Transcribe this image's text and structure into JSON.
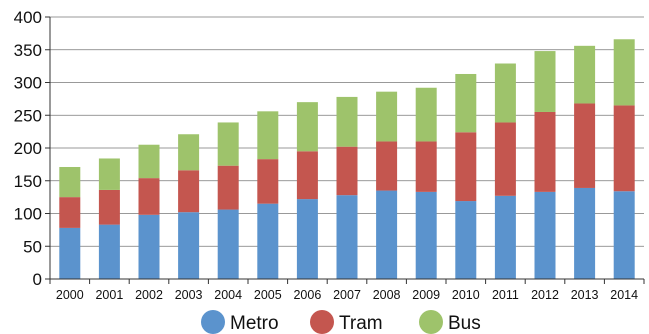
{
  "chart_data": {
    "type": "bar",
    "stacked": true,
    "categories": [
      "2000",
      "2001",
      "2002",
      "2003",
      "2004",
      "2005",
      "2006",
      "2007",
      "2008",
      "2009",
      "2010",
      "2011",
      "2012",
      "2013",
      "2014"
    ],
    "series": [
      {
        "name": "Metro",
        "color": "#5b93cd",
        "values": [
          78,
          83,
          98,
          102,
          106,
          115,
          122,
          128,
          135,
          133,
          119,
          127,
          133,
          139,
          134
        ]
      },
      {
        "name": "Tram",
        "color": "#c4564f",
        "values": [
          47,
          53,
          56,
          64,
          67,
          68,
          73,
          74,
          75,
          77,
          105,
          112,
          122,
          129,
          131
        ]
      },
      {
        "name": "Bus",
        "color": "#9ec36b",
        "values": [
          46,
          48,
          51,
          55,
          66,
          73,
          75,
          76,
          76,
          82,
          89,
          90,
          93,
          88,
          101
        ]
      }
    ],
    "yticks": [
      "0",
      "50",
      "100",
      "150",
      "200",
      "250",
      "300",
      "350",
      "400"
    ],
    "ylim": [
      0,
      400
    ],
    "title": "",
    "xlabel": "",
    "ylabel": "",
    "grid": true,
    "legend_position": "bottom"
  }
}
